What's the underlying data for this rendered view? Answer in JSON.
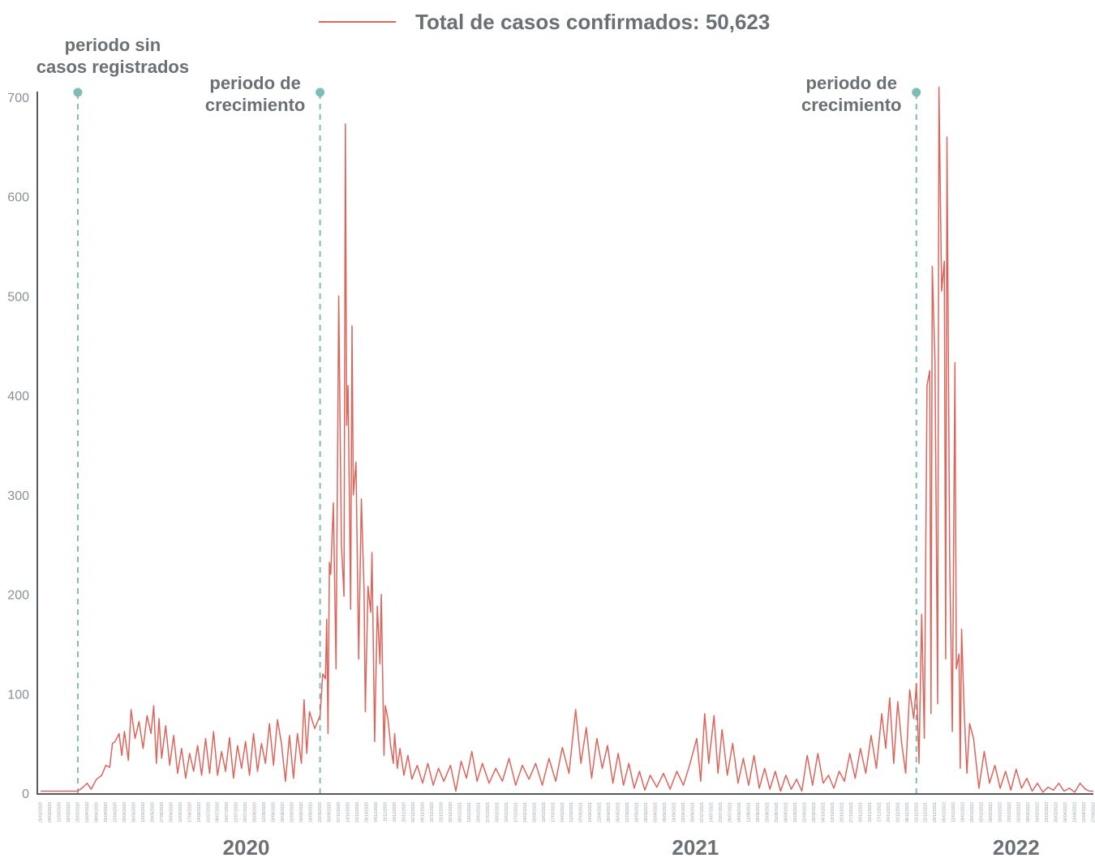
{
  "legend": {
    "prefix": "Total de casos confirmados: ",
    "total": "50,623",
    "color": "#d9655c"
  },
  "annotations": [
    {
      "lines": [
        "periodo sin",
        "casos registrados"
      ],
      "date": "25/03/2020"
    },
    {
      "lines": [
        "periodo de",
        "crecimiento"
      ],
      "date": "23/09/2020"
    },
    {
      "lines": [
        "periodo de",
        "crecimiento"
      ],
      "date": "15/12/2021"
    }
  ],
  "chart_data": {
    "type": "line",
    "x_start": "26/02/2020",
    "x_end": "27/04/2022",
    "ylim": [
      0,
      700
    ],
    "yticks": [
      0,
      100,
      200,
      300,
      400,
      500,
      600,
      700
    ],
    "years": [
      "2020",
      "2021",
      "2022"
    ],
    "grid": false,
    "line_color": "#d9655c",
    "marker_color": "#7dbdb6",
    "series": [
      {
        "name": "Total de casos confirmados",
        "points": [
          [
            "26/02/2020",
            2
          ],
          [
            "18/03/2020",
            2
          ],
          [
            "25/03/2020",
            2
          ],
          [
            "29/03/2020",
            6
          ],
          [
            "01/04/2020",
            10
          ],
          [
            "04/04/2020",
            4
          ],
          [
            "08/04/2020",
            14
          ],
          [
            "12/04/2020",
            18
          ],
          [
            "15/04/2020",
            28
          ],
          [
            "18/04/2020",
            26
          ],
          [
            "20/04/2020",
            50
          ],
          [
            "22/04/2020",
            52
          ],
          [
            "25/04/2020",
            60
          ],
          [
            "27/04/2020",
            38
          ],
          [
            "29/04/2020",
            62
          ],
          [
            "02/05/2020",
            33
          ],
          [
            "04/05/2020",
            84
          ],
          [
            "07/05/2020",
            55
          ],
          [
            "10/05/2020",
            72
          ],
          [
            "13/05/2020",
            45
          ],
          [
            "16/05/2020",
            78
          ],
          [
            "19/05/2020",
            60
          ],
          [
            "21/05/2020",
            88
          ],
          [
            "23/05/2020",
            30
          ],
          [
            "25/05/2020",
            75
          ],
          [
            "27/05/2020",
            35
          ],
          [
            "30/05/2020",
            68
          ],
          [
            "02/06/2020",
            28
          ],
          [
            "05/06/2020",
            58
          ],
          [
            "08/06/2020",
            20
          ],
          [
            "11/06/2020",
            45
          ],
          [
            "14/06/2020",
            15
          ],
          [
            "17/06/2020",
            40
          ],
          [
            "20/06/2020",
            22
          ],
          [
            "23/06/2020",
            48
          ],
          [
            "26/06/2020",
            18
          ],
          [
            "29/06/2020",
            55
          ],
          [
            "02/07/2020",
            20
          ],
          [
            "05/07/2020",
            62
          ],
          [
            "08/07/2020",
            18
          ],
          [
            "11/07/2020",
            42
          ],
          [
            "14/07/2020",
            22
          ],
          [
            "17/07/2020",
            56
          ],
          [
            "20/07/2020",
            15
          ],
          [
            "23/07/2020",
            48
          ],
          [
            "26/07/2020",
            25
          ],
          [
            "29/07/2020",
            52
          ],
          [
            "01/08/2020",
            18
          ],
          [
            "04/08/2020",
            60
          ],
          [
            "07/08/2020",
            22
          ],
          [
            "10/08/2020",
            50
          ],
          [
            "13/08/2020",
            30
          ],
          [
            "16/08/2020",
            70
          ],
          [
            "19/08/2020",
            28
          ],
          [
            "22/08/2020",
            74
          ],
          [
            "25/08/2020",
            50
          ],
          [
            "28/08/2020",
            12
          ],
          [
            "31/08/2020",
            58
          ],
          [
            "03/09/2020",
            15
          ],
          [
            "06/09/2020",
            60
          ],
          [
            "09/09/2020",
            30
          ],
          [
            "11/09/2020",
            94
          ],
          [
            "13/09/2020",
            40
          ],
          [
            "15/09/2020",
            82
          ],
          [
            "19/09/2020",
            65
          ],
          [
            "23/09/2020",
            78
          ],
          [
            "25/09/2020",
            120
          ],
          [
            "27/09/2020",
            115
          ],
          [
            "28/09/2020",
            175
          ],
          [
            "29/09/2020",
            60
          ],
          [
            "30/09/2020",
            232
          ],
          [
            "01/10/2020",
            220
          ],
          [
            "03/10/2020",
            292
          ],
          [
            "05/10/2020",
            125
          ],
          [
            "07/10/2020",
            500
          ],
          [
            "09/10/2020",
            250
          ],
          [
            "11/10/2020",
            198
          ],
          [
            "12/10/2020",
            673
          ],
          [
            "13/10/2020",
            370
          ],
          [
            "14/10/2020",
            410
          ],
          [
            "16/10/2020",
            185
          ],
          [
            "17/10/2020",
            470
          ],
          [
            "18/10/2020",
            300
          ],
          [
            "20/10/2020",
            333
          ],
          [
            "22/10/2020",
            135
          ],
          [
            "24/10/2020",
            296
          ],
          [
            "26/10/2020",
            205
          ],
          [
            "27/10/2020",
            82
          ],
          [
            "29/10/2020",
            208
          ],
          [
            "31/10/2020",
            182
          ],
          [
            "01/11/2020",
            242
          ],
          [
            "03/11/2020",
            52
          ],
          [
            "05/11/2020",
            188
          ],
          [
            "07/11/2020",
            130
          ],
          [
            "08/11/2020",
            200
          ],
          [
            "10/11/2020",
            38
          ],
          [
            "11/11/2020",
            88
          ],
          [
            "13/11/2020",
            75
          ],
          [
            "15/11/2020",
            48
          ],
          [
            "17/11/2020",
            30
          ],
          [
            "18/11/2020",
            60
          ],
          [
            "20/11/2020",
            25
          ],
          [
            "22/11/2020",
            45
          ],
          [
            "25/11/2020",
            18
          ],
          [
            "28/11/2020",
            38
          ],
          [
            "01/12/2020",
            14
          ],
          [
            "05/12/2020",
            28
          ],
          [
            "09/12/2020",
            10
          ],
          [
            "13/12/2020",
            30
          ],
          [
            "17/12/2020",
            8
          ],
          [
            "21/12/2020",
            25
          ],
          [
            "25/12/2020",
            12
          ],
          [
            "30/12/2020",
            28
          ],
          [
            "03/01/2021",
            2
          ],
          [
            "07/01/2021",
            32
          ],
          [
            "11/01/2021",
            15
          ],
          [
            "15/01/2021",
            42
          ],
          [
            "19/01/2021",
            12
          ],
          [
            "23/01/2021",
            30
          ],
          [
            "28/01/2021",
            10
          ],
          [
            "02/02/2021",
            25
          ],
          [
            "07/02/2021",
            12
          ],
          [
            "12/02/2021",
            35
          ],
          [
            "17/02/2021",
            8
          ],
          [
            "22/02/2021",
            28
          ],
          [
            "27/02/2021",
            14
          ],
          [
            "04/03/2021",
            30
          ],
          [
            "09/03/2021",
            8
          ],
          [
            "14/03/2021",
            35
          ],
          [
            "19/03/2021",
            12
          ],
          [
            "24/03/2021",
            46
          ],
          [
            "29/03/2021",
            20
          ],
          [
            "03/04/2021",
            84
          ],
          [
            "07/04/2021",
            30
          ],
          [
            "11/04/2021",
            66
          ],
          [
            "15/04/2021",
            15
          ],
          [
            "19/04/2021",
            55
          ],
          [
            "23/04/2021",
            25
          ],
          [
            "27/04/2021",
            48
          ],
          [
            "01/05/2021",
            10
          ],
          [
            "05/05/2021",
            40
          ],
          [
            "09/05/2021",
            8
          ],
          [
            "13/05/2021",
            30
          ],
          [
            "17/05/2021",
            5
          ],
          [
            "21/05/2021",
            22
          ],
          [
            "25/05/2021",
            3
          ],
          [
            "29/05/2021",
            18
          ],
          [
            "03/06/2021",
            6
          ],
          [
            "08/06/2021",
            20
          ],
          [
            "13/06/2021",
            4
          ],
          [
            "18/06/2021",
            22
          ],
          [
            "23/06/2021",
            8
          ],
          [
            "28/06/2021",
            30
          ],
          [
            "03/07/2021",
            55
          ],
          [
            "06/07/2021",
            12
          ],
          [
            "09/07/2021",
            80
          ],
          [
            "12/07/2021",
            30
          ],
          [
            "16/07/2021",
            78
          ],
          [
            "19/07/2021",
            20
          ],
          [
            "22/07/2021",
            64
          ],
          [
            "26/07/2021",
            18
          ],
          [
            "30/07/2021",
            50
          ],
          [
            "03/08/2021",
            10
          ],
          [
            "07/08/2021",
            35
          ],
          [
            "11/08/2021",
            8
          ],
          [
            "15/08/2021",
            38
          ],
          [
            "19/08/2021",
            5
          ],
          [
            "23/08/2021",
            25
          ],
          [
            "27/08/2021",
            4
          ],
          [
            "31/08/2021",
            22
          ],
          [
            "04/09/2021",
            2
          ],
          [
            "08/09/2021",
            18
          ],
          [
            "12/09/2021",
            4
          ],
          [
            "16/09/2021",
            14
          ],
          [
            "20/09/2021",
            2
          ],
          [
            "24/09/2021",
            38
          ],
          [
            "28/09/2021",
            8
          ],
          [
            "02/10/2021",
            40
          ],
          [
            "06/10/2021",
            10
          ],
          [
            "10/10/2021",
            18
          ],
          [
            "14/10/2021",
            5
          ],
          [
            "18/10/2021",
            22
          ],
          [
            "22/10/2021",
            12
          ],
          [
            "26/10/2021",
            40
          ],
          [
            "30/10/2021",
            15
          ],
          [
            "03/11/2021",
            45
          ],
          [
            "07/11/2021",
            20
          ],
          [
            "11/11/2021",
            58
          ],
          [
            "15/11/2021",
            25
          ],
          [
            "19/11/2021",
            80
          ],
          [
            "22/11/2021",
            45
          ],
          [
            "25/11/2021",
            96
          ],
          [
            "28/11/2021",
            30
          ],
          [
            "01/12/2021",
            92
          ],
          [
            "04/12/2021",
            50
          ],
          [
            "07/12/2021",
            20
          ],
          [
            "10/12/2021",
            104
          ],
          [
            "13/12/2021",
            75
          ],
          [
            "15/12/2021",
            110
          ],
          [
            "17/12/2021",
            30
          ],
          [
            "19/12/2021",
            180
          ],
          [
            "21/12/2021",
            55
          ],
          [
            "23/12/2021",
            410
          ],
          [
            "25/12/2021",
            425
          ],
          [
            "26/12/2021",
            80
          ],
          [
            "27/12/2021",
            530
          ],
          [
            "29/12/2021",
            435
          ],
          [
            "31/12/2021",
            90
          ],
          [
            "01/01/2022",
            710
          ],
          [
            "03/01/2022",
            505
          ],
          [
            "05/01/2022",
            535
          ],
          [
            "06/01/2022",
            135
          ],
          [
            "07/01/2022",
            660
          ],
          [
            "09/01/2022",
            240
          ],
          [
            "11/01/2022",
            62
          ],
          [
            "13/01/2022",
            433
          ],
          [
            "14/01/2022",
            125
          ],
          [
            "16/01/2022",
            140
          ],
          [
            "17/01/2022",
            25
          ],
          [
            "18/01/2022",
            165
          ],
          [
            "20/01/2022",
            80
          ],
          [
            "22/01/2022",
            20
          ],
          [
            "24/01/2022",
            70
          ],
          [
            "27/01/2022",
            55
          ],
          [
            "31/01/2022",
            5
          ],
          [
            "04/02/2022",
            42
          ],
          [
            "08/02/2022",
            10
          ],
          [
            "12/02/2022",
            28
          ],
          [
            "16/02/2022",
            5
          ],
          [
            "20/02/2022",
            22
          ],
          [
            "24/02/2022",
            3
          ],
          [
            "28/02/2022",
            24
          ],
          [
            "04/03/2022",
            5
          ],
          [
            "08/03/2022",
            15
          ],
          [
            "12/03/2022",
            2
          ],
          [
            "16/03/2022",
            10
          ],
          [
            "20/03/2022",
            1
          ],
          [
            "24/03/2022",
            6
          ],
          [
            "28/03/2022",
            3
          ],
          [
            "01/04/2022",
            10
          ],
          [
            "05/04/2022",
            2
          ],
          [
            "09/04/2022",
            5
          ],
          [
            "13/04/2022",
            1
          ],
          [
            "17/04/2022",
            10
          ],
          [
            "21/04/2022",
            4
          ],
          [
            "24/04/2022",
            2
          ],
          [
            "27/04/2022",
            2
          ]
        ]
      }
    ]
  }
}
